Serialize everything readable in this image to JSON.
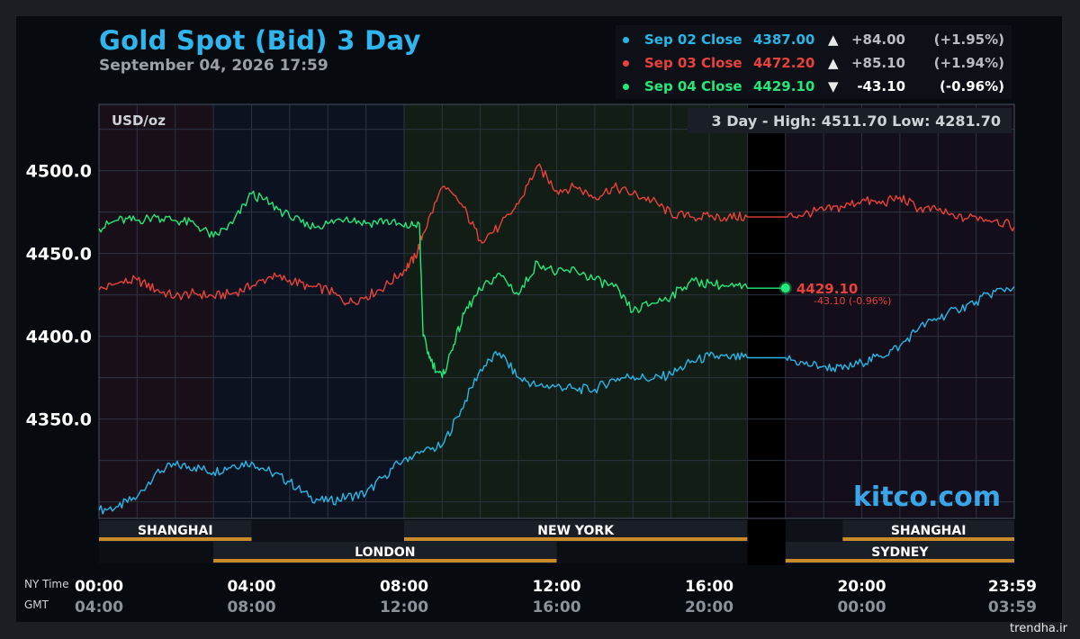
{
  "chart_data": {
    "type": "line",
    "title": "Gold Spot (Bid) 3 Day",
    "subtitle": "September 04, 2026 17:59",
    "unit_label": "USD/oz",
    "range_text": "3 Day - High: 4511.70  Low: 4281.70",
    "ylim": [
      4290,
      4540
    ],
    "yticks": [
      {
        "value": 4350,
        "label": "4350.0"
      },
      {
        "value": 4400,
        "label": "4400.0"
      },
      {
        "value": 4450,
        "label": "4450.0"
      },
      {
        "value": 4500,
        "label": "4500.0"
      }
    ],
    "xlim": [
      0,
      24
    ],
    "x_axis_ny": [
      "00:00",
      "04:00",
      "08:00",
      "12:00",
      "16:00",
      "20:00",
      "23:59"
    ],
    "x_axis_gmt": [
      "04:00",
      "08:00",
      "12:00",
      "16:00",
      "20:00",
      "00:00",
      "03:59"
    ],
    "x_axis_labels": {
      "ny": "NY Time",
      "gmt": "GMT"
    },
    "x_ticks_hours": [
      0,
      4,
      8,
      12,
      16,
      20,
      24
    ],
    "grid": true,
    "market_gap_hours": [
      17,
      18
    ],
    "sessions_row1": [
      {
        "name": "SHANGHAI",
        "start": 0,
        "end": 4
      },
      {
        "name": "NEW YORK",
        "start": 8,
        "end": 17
      },
      {
        "name": "SHANGHAI",
        "start": 19.5,
        "end": 24
      }
    ],
    "sessions_row2": [
      {
        "name": "LONDON",
        "start": 3,
        "end": 12
      },
      {
        "name": "SYDNEY",
        "start": 18,
        "end": 24
      }
    ],
    "series": [
      {
        "name": "Sep 02 Close",
        "color": "#29b6e6",
        "close": "4387.00",
        "arrow": "▲",
        "change": "+84.00",
        "percent": "(+1.95%)",
        "x": [
          0,
          0.5,
          1,
          1.5,
          2,
          2.5,
          3,
          3.5,
          4,
          4.5,
          5,
          5.5,
          6,
          6.5,
          7,
          7.5,
          8,
          8.5,
          9,
          9.5,
          10,
          10.5,
          11,
          11.5,
          12,
          12.5,
          13,
          13.5,
          14,
          14.5,
          15,
          15.5,
          16,
          16.5,
          17,
          18,
          18.5,
          19,
          19.5,
          20,
          20.5,
          21,
          21.5,
          22,
          22.5,
          23,
          23.5,
          24
        ],
        "y": [
          4295,
          4297,
          4303,
          4318,
          4322,
          4321,
          4318,
          4322,
          4324,
          4318,
          4312,
          4303,
          4300,
          4303,
          4305,
          4316,
          4326,
          4330,
          4334,
          4356,
          4380,
          4390,
          4375,
          4370,
          4370,
          4368,
          4368,
          4374,
          4376,
          4374,
          4377,
          4384,
          4388,
          4387,
          4387,
          4387,
          4383,
          4382,
          4380,
          4384,
          4388,
          4394,
          4405,
          4411,
          4416,
          4421,
          4427,
          4430
        ]
      },
      {
        "name": "Sep 03 Close",
        "color": "#e8423a",
        "close": "4472.20",
        "arrow": "▲",
        "change": "+85.10",
        "percent": "(+1.94%)",
        "x": [
          0,
          0.5,
          1,
          1.5,
          2,
          2.5,
          3,
          3.5,
          4,
          4.5,
          5,
          5.5,
          6,
          6.5,
          7,
          7.5,
          8,
          8.3,
          8.5,
          9,
          9.5,
          10,
          10.5,
          11,
          11.5,
          12,
          12.5,
          13,
          13.5,
          14,
          14.5,
          15,
          15.5,
          16,
          16.5,
          17,
          18,
          18.5,
          19,
          19.5,
          20,
          20.5,
          21,
          21.5,
          22,
          22.5,
          23,
          23.5,
          24
        ],
        "y": [
          4428,
          4432,
          4434,
          4428,
          4424,
          4426,
          4424,
          4426,
          4430,
          4436,
          4434,
          4430,
          4428,
          4420,
          4424,
          4430,
          4440,
          4448,
          4462,
          4490,
          4480,
          4458,
          4466,
          4480,
          4503,
          4488,
          4490,
          4484,
          4490,
          4486,
          4482,
          4474,
          4472,
          4472,
          4472,
          4472,
          4472,
          4474,
          4476,
          4478,
          4482,
          4480,
          4484,
          4477,
          4476,
          4471,
          4472,
          4470,
          4466
        ]
      },
      {
        "name": "Sep 04 Close",
        "color": "#25e87a",
        "close": "4429.10",
        "arrow": "▼",
        "change": "-43.10",
        "percent": "(-0.96%)",
        "x": [
          0,
          0.5,
          1,
          1.5,
          2,
          2.5,
          3,
          3.5,
          4,
          4.5,
          5,
          5.5,
          6,
          6.5,
          7,
          7.5,
          8,
          8.4,
          8.5,
          8.7,
          9,
          9.3,
          9.6,
          10,
          10.5,
          11,
          11.5,
          12,
          12.5,
          13,
          13.5,
          14,
          14.5,
          15,
          15.5,
          16,
          16.5,
          17,
          18
        ],
        "y": [
          4465,
          4470,
          4470,
          4472,
          4470,
          4468,
          4460,
          4468,
          4486,
          4480,
          4472,
          4466,
          4468,
          4472,
          4468,
          4470,
          4466,
          4468,
          4400,
          4385,
          4375,
          4395,
          4415,
          4428,
          4438,
          4425,
          4445,
          4438,
          4440,
          4434,
          4430,
          4415,
          4420,
          4424,
          4433,
          4432,
          4430,
          4429,
          4429
        ]
      }
    ],
    "marker": {
      "x": 18,
      "value": "4429.10",
      "change_text": "-43.10 (-0.96%)"
    }
  },
  "brand": "kitco.com",
  "footer": "trendha.ir"
}
